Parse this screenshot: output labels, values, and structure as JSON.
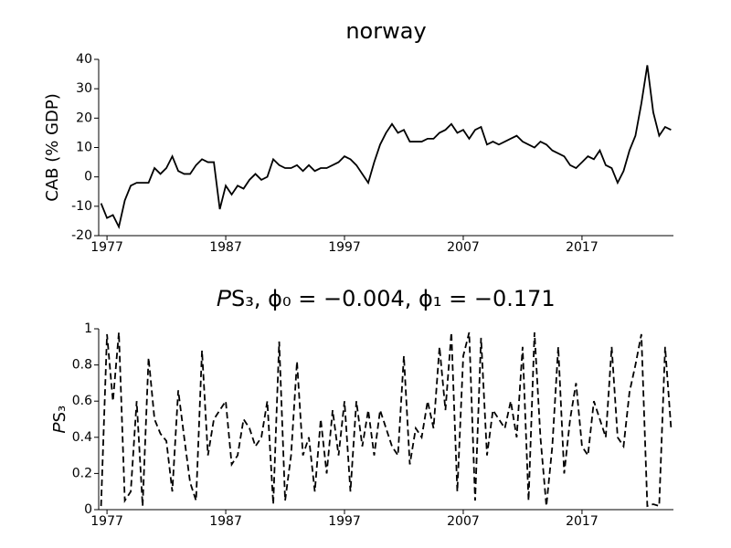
{
  "chart_data": [
    {
      "type": "line",
      "title": "norway",
      "ylabel": "CAB (% GDP)",
      "color": "#000000",
      "line_style": "solid",
      "x": [
        1976.5,
        1977,
        1977.5,
        1978,
        1978.5,
        1979,
        1979.5,
        1980,
        1980.5,
        1981,
        1981.5,
        1982,
        1982.5,
        1983,
        1983.5,
        1984,
        1984.5,
        1985,
        1985.5,
        1986,
        1986.5,
        1987,
        1987.5,
        1988,
        1988.5,
        1989,
        1989.5,
        1990,
        1990.5,
        1991,
        1991.5,
        1992,
        1992.5,
        1993,
        1993.5,
        1994,
        1994.5,
        1995,
        1995.5,
        1996,
        1996.5,
        1997,
        1997.5,
        1998,
        1998.5,
        1999,
        1999.5,
        2000,
        2000.5,
        2001,
        2001.5,
        2002,
        2002.5,
        2003,
        2003.5,
        2004,
        2004.5,
        2005,
        2005.5,
        2006,
        2006.5,
        2007,
        2007.5,
        2008,
        2008.5,
        2009,
        2009.5,
        2010,
        2010.5,
        2011,
        2011.5,
        2012,
        2012.5,
        2013,
        2013.5,
        2014,
        2014.5,
        2015,
        2015.5,
        2016,
        2016.5,
        2017,
        2017.5,
        2018,
        2018.5,
        2019,
        2019.5,
        2020,
        2020.5,
        2021,
        2021.5,
        2022,
        2022.5,
        2023,
        2023.5,
        2024,
        2024.5
      ],
      "values": [
        -9,
        -14,
        -13,
        -17,
        -8,
        -3,
        -2,
        -2,
        -2,
        3,
        1,
        3,
        7,
        2,
        1,
        1,
        4,
        6,
        5,
        5,
        -11,
        -3,
        -6,
        -3,
        -4,
        -1,
        1,
        -1,
        0,
        6,
        4,
        3,
        3,
        4,
        2,
        4,
        2,
        3,
        3,
        4,
        5,
        7,
        6,
        4,
        1,
        -2,
        5,
        11,
        15,
        18,
        15,
        16,
        12,
        12,
        12,
        13,
        13,
        15,
        16,
        18,
        15,
        16,
        13,
        16,
        17,
        11,
        12,
        11,
        12,
        13,
        14,
        12,
        11,
        10,
        12,
        11,
        9,
        8,
        7,
        4,
        3,
        5,
        7,
        6,
        9,
        4,
        3,
        -2,
        2,
        9,
        14,
        25,
        38,
        22,
        14,
        17,
        16
      ],
      "xlim": [
        1976.3,
        2024.7
      ],
      "xticks": [
        1977,
        1987,
        1997,
        2007,
        2017
      ],
      "ylim": [
        -20,
        40
      ],
      "yticks": [
        -20,
        -10,
        0,
        10,
        20,
        30,
        40
      ]
    },
    {
      "type": "line",
      "title": "𝑃S₃, ϕ₀ = −0.004, ϕ₁ = −0.171",
      "ylabel": "𝑃S₃",
      "color": "#000000",
      "line_style": "dashed",
      "x": [
        1976.5,
        1977,
        1977.5,
        1978,
        1978.5,
        1979,
        1979.5,
        1980,
        1980.5,
        1981,
        1981.5,
        1982,
        1982.5,
        1983,
        1983.5,
        1984,
        1984.5,
        1985,
        1985.5,
        1986,
        1986.5,
        1987,
        1987.5,
        1988,
        1988.5,
        1989,
        1989.5,
        1990,
        1990.5,
        1991,
        1991.5,
        1992,
        1992.5,
        1993,
        1993.5,
        1994,
        1994.5,
        1995,
        1995.5,
        1996,
        1996.5,
        1997,
        1997.5,
        1998,
        1998.5,
        1999,
        1999.5,
        2000,
        2000.5,
        2001,
        2001.5,
        2002,
        2002.5,
        2003,
        2003.5,
        2004,
        2004.5,
        2005,
        2005.5,
        2006,
        2006.5,
        2007,
        2007.5,
        2008,
        2008.5,
        2009,
        2009.5,
        2010,
        2010.5,
        2011,
        2011.5,
        2012,
        2012.5,
        2013,
        2013.5,
        2014,
        2014.5,
        2015,
        2015.5,
        2016,
        2016.5,
        2017,
        2017.5,
        2018,
        2018.5,
        2019,
        2019.5,
        2020,
        2020.5,
        2021,
        2021.5,
        2022,
        2022.5,
        2023,
        2023.5,
        2024,
        2024.5
      ],
      "values": [
        0.02,
        0.97,
        0.6,
        0.98,
        0.05,
        0.1,
        0.6,
        0.02,
        0.84,
        0.5,
        0.42,
        0.38,
        0.1,
        0.66,
        0.4,
        0.15,
        0.05,
        0.88,
        0.3,
        0.5,
        0.55,
        0.6,
        0.25,
        0.3,
        0.5,
        0.45,
        0.35,
        0.4,
        0.6,
        0.03,
        0.93,
        0.05,
        0.3,
        0.82,
        0.3,
        0.4,
        0.1,
        0.5,
        0.2,
        0.55,
        0.3,
        0.6,
        0.1,
        0.6,
        0.35,
        0.55,
        0.3,
        0.55,
        0.45,
        0.35,
        0.3,
        0.85,
        0.25,
        0.45,
        0.4,
        0.6,
        0.45,
        0.9,
        0.55,
        0.98,
        0.1,
        0.85,
        0.98,
        0.05,
        0.95,
        0.3,
        0.55,
        0.5,
        0.45,
        0.6,
        0.4,
        0.9,
        0.05,
        0.98,
        0.4,
        0.02,
        0.35,
        0.9,
        0.2,
        0.5,
        0.7,
        0.35,
        0.3,
        0.6,
        0.5,
        0.4,
        0.9,
        0.4,
        0.35,
        0.65,
        0.8,
        0.97,
        0.02,
        0.03,
        0.02,
        0.9,
        0.45
      ],
      "xlim": [
        1976.3,
        2024.7
      ],
      "xticks": [
        1977,
        1987,
        1997,
        2007,
        2017
      ],
      "ylim": [
        0,
        1
      ],
      "yticks": [
        0,
        0.2,
        0.4,
        0.6,
        0.8,
        1
      ]
    }
  ]
}
